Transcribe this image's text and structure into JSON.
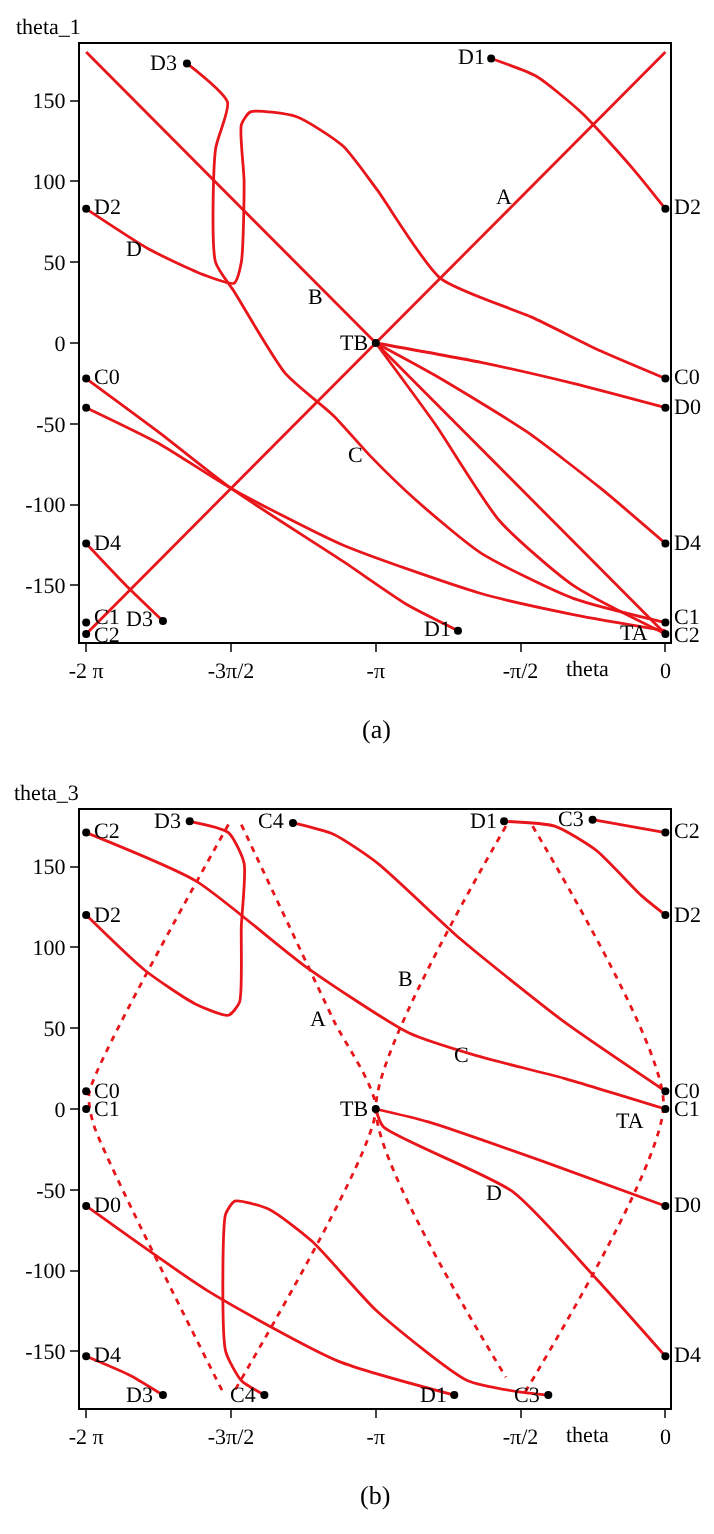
{
  "chart_data": [
    {
      "type": "line",
      "xlabel": "theta",
      "ylabel": "theta_1",
      "annotations": [
        "(a)",
        {
          "text": "A",
          "x": -1.5708,
          "y": 90
        },
        {
          "text": "B",
          "x": -3.63,
          "y": 28
        },
        {
          "text": "C",
          "x": -3.2,
          "y": -70
        },
        {
          "text": "D",
          "x": -5.6,
          "y": 58
        },
        {
          "text": "TB",
          "x": -3.1416,
          "y": 0
        },
        {
          "text": "TA",
          "x": -0.1,
          "y": -180
        },
        {
          "text": "D3",
          "x": -5.19,
          "y": 173
        },
        {
          "text": "D1",
          "x": -1.89,
          "y": 176
        },
        {
          "text": "D2",
          "x": -6.283,
          "y": 83
        },
        {
          "text": "D2",
          "x": 0,
          "y": 83
        },
        {
          "text": "C0",
          "x": -6.283,
          "y": -22
        },
        {
          "text": "C0",
          "x": 0,
          "y": -22
        },
        {
          "text": "D0",
          "x": 0,
          "y": -40
        },
        {
          "text": "D4",
          "x": -6.283,
          "y": -124
        },
        {
          "text": "D4",
          "x": 0,
          "y": -124
        },
        {
          "text": "C1",
          "x": -6.283,
          "y": -170
        },
        {
          "text": "C2",
          "x": -6.283,
          "y": -181
        },
        {
          "text": "C1",
          "x": 0,
          "y": -170
        },
        {
          "text": "C2",
          "x": 0,
          "y": -181
        },
        {
          "text": "D3",
          "x": -5.45,
          "y": -172
        },
        {
          "text": "D1",
          "x": -2.25,
          "y": -178
        }
      ],
      "xlim": [
        -6.35,
        0.05
      ],
      "ylim": [
        -185,
        185
      ],
      "xticks": [
        {
          "value": -6.283,
          "label": "-2 π"
        },
        {
          "value": -4.712,
          "label": "-3π/2"
        },
        {
          "value": -3.1416,
          "label": "-π"
        },
        {
          "value": -1.5708,
          "label": "-π/2"
        },
        0
      ],
      "yticks": [
        -150,
        -100,
        -50,
        0,
        50,
        100,
        150
      ],
      "series": [
        {
          "type": "line",
          "color": "#e8161b",
          "line_style": "solid",
          "x": [
            -6.283,
            0
          ],
          "values": [
            -180,
            180
          ]
        },
        {
          "type": "line",
          "color": "#e8161b",
          "line_style": "solid",
          "x": [
            -6.283,
            0
          ],
          "values": [
            180,
            -180
          ]
        },
        {
          "type": "line",
          "color": "#e8161b",
          "line_style": "solid",
          "x": [
            -1.89,
            -1.4,
            -0.9,
            -0.34,
            0
          ],
          "values": [
            176,
            165,
            142,
            107,
            83
          ]
        },
        {
          "type": "line",
          "color": "#e8161b",
          "line_style": "solid",
          "x": [
            -6.283,
            -5.6,
            -5.0,
            -4.68,
            -4.6,
            -4.57,
            -4.6,
            -4.5,
            -4.0,
            -3.5,
            -3.13,
            -2.44,
            -1.45,
            -0.7,
            0
          ],
          "values": [
            83,
            58,
            42,
            37,
            50,
            100,
            135,
            143,
            140,
            122,
            95,
            40,
            16,
            -5,
            -22
          ]
        },
        {
          "type": "line",
          "color": "#e8161b",
          "line_style": "solid",
          "x": [
            -5.19,
            -4.75,
            -4.88,
            -4.88,
            -4.68,
            -4.12,
            -3.6,
            -3.2,
            -2.71,
            -2.0,
            -1.0,
            0
          ],
          "values": [
            173,
            149,
            120,
            50,
            32,
            -19,
            -45,
            -70,
            -97,
            -130,
            -158,
            -173
          ]
        },
        {
          "type": "line",
          "color": "#e8161b",
          "line_style": "solid",
          "x": [
            -3.1416,
            -2,
            -1,
            0
          ],
          "values": [
            0,
            -12,
            -25,
            -40
          ]
        },
        {
          "type": "line",
          "color": "#e8161b",
          "line_style": "solid",
          "x": [
            -3.1416,
            -2.5,
            -1.5,
            -0.7,
            0
          ],
          "values": [
            0,
            -20,
            -55,
            -90,
            -124
          ]
        },
        {
          "type": "line",
          "color": "#e8161b",
          "line_style": "solid",
          "x": [
            -3.1416,
            -2.5,
            -1.8,
            -1,
            0
          ],
          "values": [
            0,
            -50,
            -110,
            -150,
            -180
          ]
        },
        {
          "type": "line",
          "color": "#e8161b",
          "line_style": "solid",
          "x": [
            -6.283,
            -5.5,
            -4.71,
            -3.5,
            -2.8,
            -2.25
          ],
          "values": [
            -22,
            -55,
            -90,
            -135,
            -162,
            -178
          ]
        },
        {
          "type": "line",
          "color": "#e8161b",
          "line_style": "solid",
          "x": [
            -6.283,
            -5.5,
            -4.71,
            -3.5,
            -2.0,
            -1,
            0
          ],
          "values": [
            -40,
            -62,
            -90,
            -125,
            -155,
            -168,
            -178
          ]
        },
        {
          "type": "line",
          "color": "#e8161b",
          "line_style": "solid",
          "x": [
            -6.283,
            -5.85,
            -5.45
          ],
          "values": [
            -124,
            -150,
            -172
          ]
        },
        {
          "type": "scatter",
          "color": "#000000",
          "marker": "circle",
          "x": [
            -5.19,
            -1.89,
            -6.283,
            0,
            -6.283,
            0,
            -6.283,
            0,
            -6.283,
            0,
            -6.283,
            -6.283,
            0,
            0,
            -5.45,
            -2.25,
            -3.1416
          ],
          "values": [
            173,
            176,
            83,
            83,
            -22,
            -22,
            -40,
            -40,
            -124,
            -124,
            -173,
            -180,
            -173,
            -180,
            -172,
            -178,
            0
          ]
        }
      ]
    },
    {
      "type": "line",
      "xlabel": "theta",
      "ylabel": "theta_3",
      "annotations": [
        "(b)",
        {
          "text": "A",
          "x": -3.6,
          "y": 55
        },
        {
          "text": "B",
          "x": -2.67,
          "y": 80
        },
        {
          "text": "C",
          "x": -2.05,
          "y": 33
        },
        {
          "text": "D",
          "x": -1.69,
          "y": -52
        },
        {
          "text": "TB",
          "x": -3.1416,
          "y": 0
        },
        {
          "text": "TA",
          "x": -0.15,
          "y": -8
        },
        {
          "text": "D3",
          "x": -5.16,
          "y": 178
        },
        {
          "text": "C4",
          "x": -4.04,
          "y": 177
        },
        {
          "text": "D1",
          "x": -1.75,
          "y": 178
        },
        {
          "text": "C3",
          "x": -0.79,
          "y": 179
        },
        {
          "text": "C2",
          "x": -6.283,
          "y": 171
        },
        {
          "text": "C2",
          "x": 0,
          "y": 171
        },
        {
          "text": "D2",
          "x": -6.283,
          "y": 120
        },
        {
          "text": "D2",
          "x": 0,
          "y": 120
        },
        {
          "text": "C0",
          "x": -6.283,
          "y": 11
        },
        {
          "text": "C1",
          "x": -6.283,
          "y": 0
        },
        {
          "text": "C0",
          "x": 0,
          "y": 11
        },
        {
          "text": "C1",
          "x": 0,
          "y": 0
        },
        {
          "text": "D0",
          "x": -6.283,
          "y": -60
        },
        {
          "text": "D0",
          "x": 0,
          "y": -60
        },
        {
          "text": "D4",
          "x": -6.283,
          "y": -153
        },
        {
          "text": "D4",
          "x": 0,
          "y": -153
        },
        {
          "text": "D3",
          "x": -5.45,
          "y": -177
        },
        {
          "text": "C4",
          "x": -4.35,
          "y": -177
        },
        {
          "text": "D1",
          "x": -2.29,
          "y": -177
        },
        {
          "text": "C3",
          "x": -1.27,
          "y": -177
        }
      ],
      "xlim": [
        -6.35,
        0.05
      ],
      "ylim": [
        -185,
        185
      ],
      "xticks": [
        {
          "value": -6.283,
          "label": "-2 π"
        },
        {
          "value": -4.712,
          "label": "-3π/2"
        },
        {
          "value": -3.1416,
          "label": "-π"
        },
        {
          "value": -1.5708,
          "label": "-π/2"
        },
        0
      ],
      "yticks": [
        -150,
        -100,
        -50,
        0,
        50,
        100,
        150
      ],
      "series": [
        {
          "type": "line",
          "color": "#e8161b",
          "line_style": "solid",
          "x": [
            -6.283,
            -5.09,
            -3.9,
            -2.78,
            -2.05,
            -1.1,
            0
          ],
          "values": [
            171,
            141,
            88,
            47,
            33,
            19,
            0
          ]
        },
        {
          "type": "line",
          "color": "#e8161b",
          "line_style": "solid",
          "x": [
            -4.04,
            -3.6,
            -3.12,
            -2.22,
            -1.1,
            0
          ],
          "values": [
            177,
            170,
            152,
            105,
            54,
            11
          ]
        },
        {
          "type": "line",
          "color": "#e8161b",
          "line_style": "solid",
          "x": [
            -6.283,
            -5.65,
            -5.1,
            -4.74,
            -4.62,
            -4.6,
            -4.57,
            -4.74,
            -5.16
          ],
          "values": [
            120,
            86,
            65,
            58,
            66,
            113,
            152,
            171,
            178
          ]
        },
        {
          "type": "line",
          "color": "#e8161b",
          "line_style": "solid",
          "x": [
            -1.75,
            -1.2,
            -0.75,
            -0.26,
            0
          ],
          "values": [
            178,
            175,
            160,
            132,
            120
          ]
        },
        {
          "type": "line",
          "color": "#e8161b",
          "line_style": "solid",
          "x": [
            -0.79,
            0
          ],
          "values": [
            179,
            171
          ]
        },
        {
          "type": "line",
          "color": "#e8161b",
          "line_style": "dotted",
          "x": [
            -4.74,
            -6.25,
            -6.2,
            -4.81
          ],
          "values": [
            176,
            10,
            -10,
            -174
          ]
        },
        {
          "type": "line",
          "color": "#e8161b",
          "line_style": "dotted",
          "x": [
            -4.6,
            -3.6,
            -3.1416,
            -4.67
          ],
          "values": [
            176,
            55,
            0,
            -174
          ]
        },
        {
          "type": "line",
          "color": "#e8161b",
          "line_style": "dotted",
          "x": [
            -1.73,
            -3.1416,
            -1.73
          ],
          "values": [
            175,
            0,
            -166
          ]
        },
        {
          "type": "line",
          "color": "#e8161b",
          "line_style": "dotted",
          "x": [
            -1.44,
            -0.02,
            -1.52
          ],
          "values": [
            175,
            3,
            -175
          ]
        },
        {
          "type": "line",
          "color": "#e8161b",
          "line_style": "solid",
          "x": [
            -4.35,
            -4.6,
            -4.77,
            -4.8,
            -4.77,
            -4.67,
            -4.3,
            -3.83,
            -3.13,
            -2.15,
            -1.59,
            -1.27
          ],
          "values": [
            -177,
            -168,
            -150,
            -100,
            -65,
            -57,
            -62,
            -82,
            -125,
            -168,
            -175,
            -177
          ]
        },
        {
          "type": "line",
          "color": "#e8161b",
          "line_style": "solid",
          "x": [
            -3.1416,
            -2.57,
            -1.2,
            0
          ],
          "values": [
            0,
            -8,
            -35,
            -60
          ]
        },
        {
          "type": "line",
          "color": "#e8161b",
          "line_style": "solid",
          "x": [
            -3.1416,
            -3.06,
            -1.66,
            -0.75,
            0
          ],
          "values": [
            0,
            -11,
            -51,
            -105,
            -153
          ]
        },
        {
          "type": "line",
          "color": "#e8161b",
          "line_style": "solid",
          "x": [
            -6.283,
            -4.95,
            -3.55,
            -2.29
          ],
          "values": [
            -60,
            -113,
            -156,
            -177
          ]
        },
        {
          "type": "line",
          "color": "#e8161b",
          "line_style": "solid",
          "x": [
            -6.283,
            -5.8,
            -5.45
          ],
          "values": [
            -153,
            -165,
            -177
          ]
        },
        {
          "type": "scatter",
          "color": "#000000",
          "marker": "circle",
          "x": [
            -5.16,
            -4.04,
            -1.75,
            -0.79,
            -6.283,
            0,
            -6.283,
            0,
            -6.283,
            -6.283,
            0,
            0,
            -3.1416,
            -6.283,
            0,
            -6.283,
            0,
            -5.45,
            -4.35,
            -2.29,
            -1.27
          ],
          "values": [
            178,
            177,
            178,
            179,
            171,
            171,
            120,
            120,
            11,
            0,
            11,
            0,
            0,
            -60,
            -60,
            -153,
            -153,
            -177,
            -177,
            -177,
            -177
          ]
        }
      ]
    }
  ]
}
